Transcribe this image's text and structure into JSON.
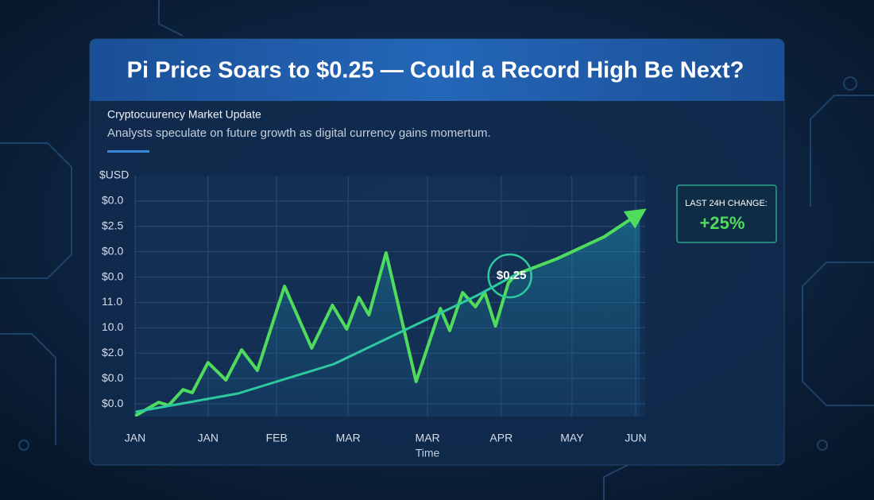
{
  "chart_data": {
    "type": "line",
    "title": "Pi Price Soars to $0.25 — Could a Record High Be Next?",
    "subtitle": "Cryptocuurency Market Update",
    "description": "Analysts speculate on future growth as digital currency gains momertum.",
    "y_label": "$USD",
    "x_label": "Time",
    "xlim": [
      0,
      7.1
    ],
    "xticks": [
      {
        "value": 0,
        "label": "JAN"
      },
      {
        "value": 1.02,
        "label": "JAN"
      },
      {
        "value": 1.98,
        "label": "FEB"
      },
      {
        "value": 2.98,
        "label": "MAR"
      },
      {
        "value": 4.09,
        "label": "MAR"
      },
      {
        "value": 5.12,
        "label": "APR"
      },
      {
        "value": 6.11,
        "label": "MAY"
      },
      {
        "value": 7,
        "label": "JUN"
      }
    ],
    "ylim": [
      -0.5,
      9
    ],
    "yticks": [
      {
        "value": 0,
        "label": "$0.0"
      },
      {
        "value": 1,
        "label": "$0.0"
      },
      {
        "value": 2,
        "label": "$2.0"
      },
      {
        "value": 3,
        "label": "10.0"
      },
      {
        "value": 4,
        "label": "11.0"
      },
      {
        "value": 5,
        "label": "$0.0"
      },
      {
        "value": 6,
        "label": "$0.0"
      },
      {
        "value": 7,
        "label": "$2.5"
      },
      {
        "value": 8,
        "label": "$0.0"
      }
    ],
    "grid": true,
    "series": [
      {
        "color": "#4fdc5c",
        "x": [
          0.02,
          0.33,
          0.47,
          0.67,
          0.8,
          1.02,
          1.27,
          1.49,
          1.71,
          2.09,
          2.47,
          2.76,
          2.96,
          3.13,
          3.27,
          3.51,
          3.93,
          4.27,
          4.4,
          4.58,
          4.76,
          4.89,
          5.04,
          5.22,
          5.33,
          5.89,
          6.56,
          7.06
        ],
        "values": [
          -0.44,
          0.06,
          -0.06,
          0.56,
          0.44,
          1.63,
          0.94,
          2.13,
          1.32,
          4.64,
          2.2,
          3.89,
          2.95,
          4.2,
          3.51,
          5.96,
          0.88,
          3.76,
          2.89,
          4.39,
          3.83,
          4.39,
          3.07,
          4.77,
          5.11,
          5.71,
          6.59,
          7.53
        ]
      },
      {
        "color": "#2fc9a0",
        "x": [
          0.02,
          1.44,
          2.78,
          3.89,
          4.78,
          5.33
        ],
        "values": [
          -0.31,
          0.41,
          1.57,
          3.07,
          4.27,
          5.11
        ]
      }
    ],
    "annotation": "$0.25",
    "callout": {
      "label": "LAST 24H CHANGE:",
      "value": "+25%"
    }
  }
}
